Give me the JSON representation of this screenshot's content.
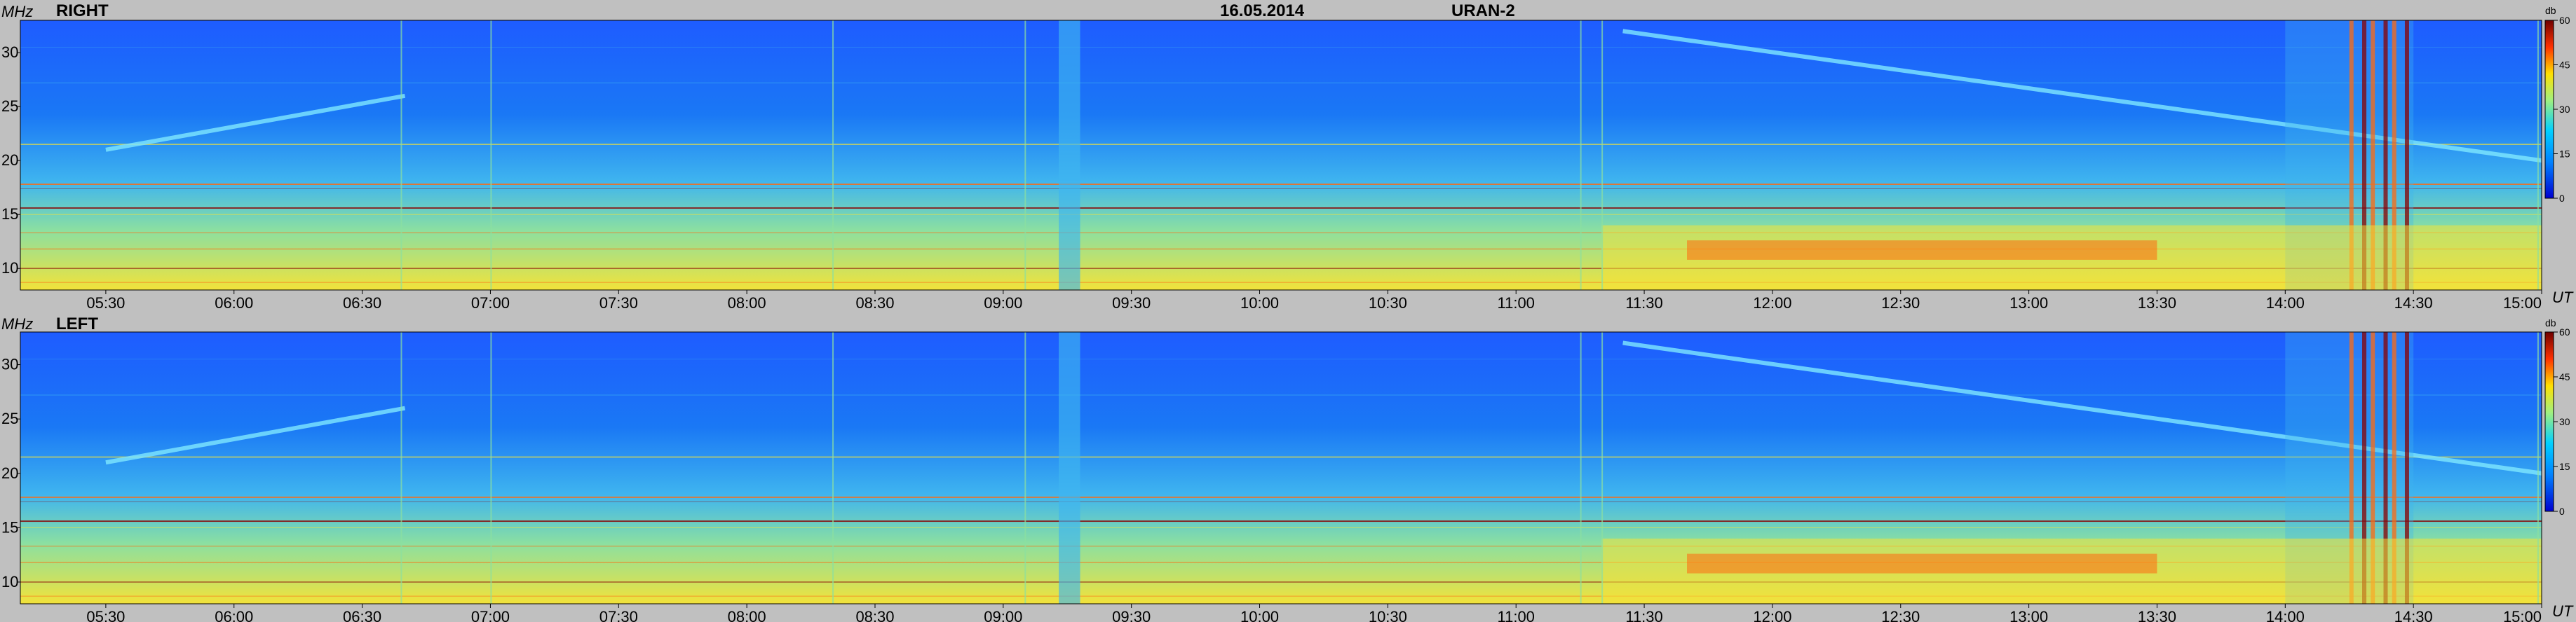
{
  "header": {
    "date": "16.05.2014",
    "instrument": "URAN-2"
  },
  "chart_data": [
    {
      "type": "heatmap",
      "title": "RIGHT",
      "ylabel": "MHz",
      "xlabel": "UT",
      "x_ticks": [
        "05:30",
        "06:00",
        "06:30",
        "07:00",
        "07:30",
        "08:00",
        "08:30",
        "09:00",
        "09:30",
        "10:00",
        "10:30",
        "11:00",
        "11:30",
        "12:00",
        "12:30",
        "13:00",
        "13:30",
        "14:00",
        "14:30",
        "15:00"
      ],
      "y_ticks": [
        10,
        15,
        20,
        25,
        30
      ],
      "xlim": [
        "05:10",
        "15:00"
      ],
      "ylim": [
        8,
        33
      ],
      "colorbar": {
        "unit": "db",
        "ticks": [
          0,
          15,
          30,
          45,
          60
        ],
        "range": [
          0,
          60
        ]
      },
      "features": [
        {
          "kind": "drifting_burst",
          "t_start": "05:30",
          "t_end": "06:40",
          "f_start": 21,
          "f_end": 26
        },
        {
          "kind": "drifting_burst",
          "t_start": "11:25",
          "t_end": "15:00",
          "f_start": 32,
          "f_end": 20
        },
        {
          "kind": "broadband_burst",
          "t_start": "09:13",
          "t_end": "09:18"
        },
        {
          "kind": "intense_emission",
          "t_start": "14:00",
          "t_end": "14:30",
          "f_low": 8,
          "f_high": 33
        },
        {
          "kind": "enhanced_emission",
          "t_start": "11:20",
          "t_end": "15:00",
          "f_low": 8,
          "f_high": 14
        }
      ]
    },
    {
      "type": "heatmap",
      "title": "LEFT",
      "ylabel": "MHz",
      "xlabel": "UT",
      "x_ticks": [
        "05:30",
        "06:00",
        "06:30",
        "07:00",
        "07:30",
        "08:00",
        "08:30",
        "09:00",
        "09:30",
        "10:00",
        "10:30",
        "11:00",
        "11:30",
        "12:00",
        "12:30",
        "13:00",
        "13:30",
        "14:00",
        "14:30",
        "15:00"
      ],
      "y_ticks": [
        10,
        15,
        20,
        25,
        30
      ],
      "xlim": [
        "05:10",
        "15:00"
      ],
      "ylim": [
        8,
        33
      ],
      "colorbar": {
        "unit": "db",
        "ticks": [
          0,
          15,
          30,
          45,
          60
        ],
        "range": [
          0,
          60
        ]
      },
      "features": [
        {
          "kind": "drifting_burst",
          "t_start": "05:30",
          "t_end": "06:40",
          "f_start": 21,
          "f_end": 26
        },
        {
          "kind": "drifting_burst",
          "t_start": "11:25",
          "t_end": "15:00",
          "f_start": 32,
          "f_end": 20
        },
        {
          "kind": "broadband_burst",
          "t_start": "09:13",
          "t_end": "09:18"
        },
        {
          "kind": "intense_emission",
          "t_start": "14:00",
          "t_end": "14:30",
          "f_low": 8,
          "f_high": 33
        },
        {
          "kind": "enhanced_emission",
          "t_start": "11:20",
          "t_end": "15:00",
          "f_low": 8,
          "f_high": 14
        }
      ]
    }
  ],
  "colors": {
    "background": "#c0c0c0",
    "low": "#1e5cff",
    "mid_low": "#3fb5ef",
    "mid": "#8ce0a0",
    "mid_high": "#f2e23a",
    "high": "#ff6a10",
    "max": "#8a0000"
  }
}
